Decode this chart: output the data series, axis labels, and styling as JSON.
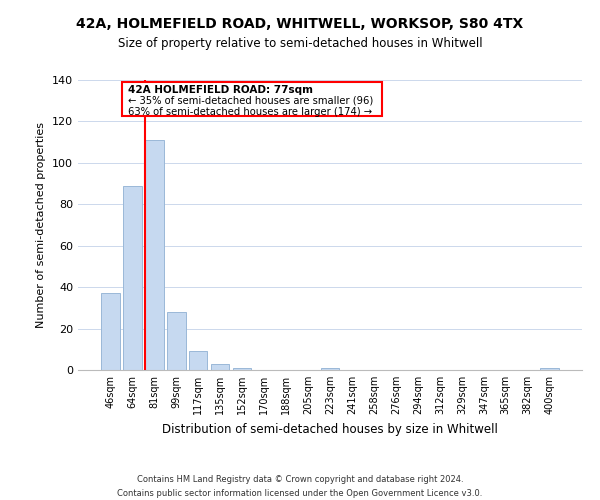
{
  "title": "42A, HOLMEFIELD ROAD, WHITWELL, WORKSOP, S80 4TX",
  "subtitle": "Size of property relative to semi-detached houses in Whitwell",
  "xlabel": "Distribution of semi-detached houses by size in Whitwell",
  "ylabel": "Number of semi-detached properties",
  "bar_labels": [
    "46sqm",
    "64sqm",
    "81sqm",
    "99sqm",
    "117sqm",
    "135sqm",
    "152sqm",
    "170sqm",
    "188sqm",
    "205sqm",
    "223sqm",
    "241sqm",
    "258sqm",
    "276sqm",
    "294sqm",
    "312sqm",
    "329sqm",
    "347sqm",
    "365sqm",
    "382sqm",
    "400sqm"
  ],
  "bar_heights": [
    37,
    89,
    111,
    28,
    9,
    3,
    1,
    0,
    0,
    0,
    1,
    0,
    0,
    0,
    0,
    0,
    0,
    0,
    0,
    0,
    1
  ],
  "bar_color": "#c6d9f0",
  "bar_edge_color": "#9ab8d8",
  "annotation_title": "42A HOLMEFIELD ROAD: 77sqm",
  "annotation_pct_smaller": "← 35% of semi-detached houses are smaller (96)",
  "annotation_pct_larger": "63% of semi-detached houses are larger (174) →",
  "ylim": [
    0,
    140
  ],
  "yticks": [
    0,
    20,
    40,
    60,
    80,
    100,
    120,
    140
  ],
  "footer_line1": "Contains HM Land Registry data © Crown copyright and database right 2024.",
  "footer_line2": "Contains public sector information licensed under the Open Government Licence v3.0.",
  "background_color": "#ffffff",
  "grid_color": "#ccd8ec"
}
